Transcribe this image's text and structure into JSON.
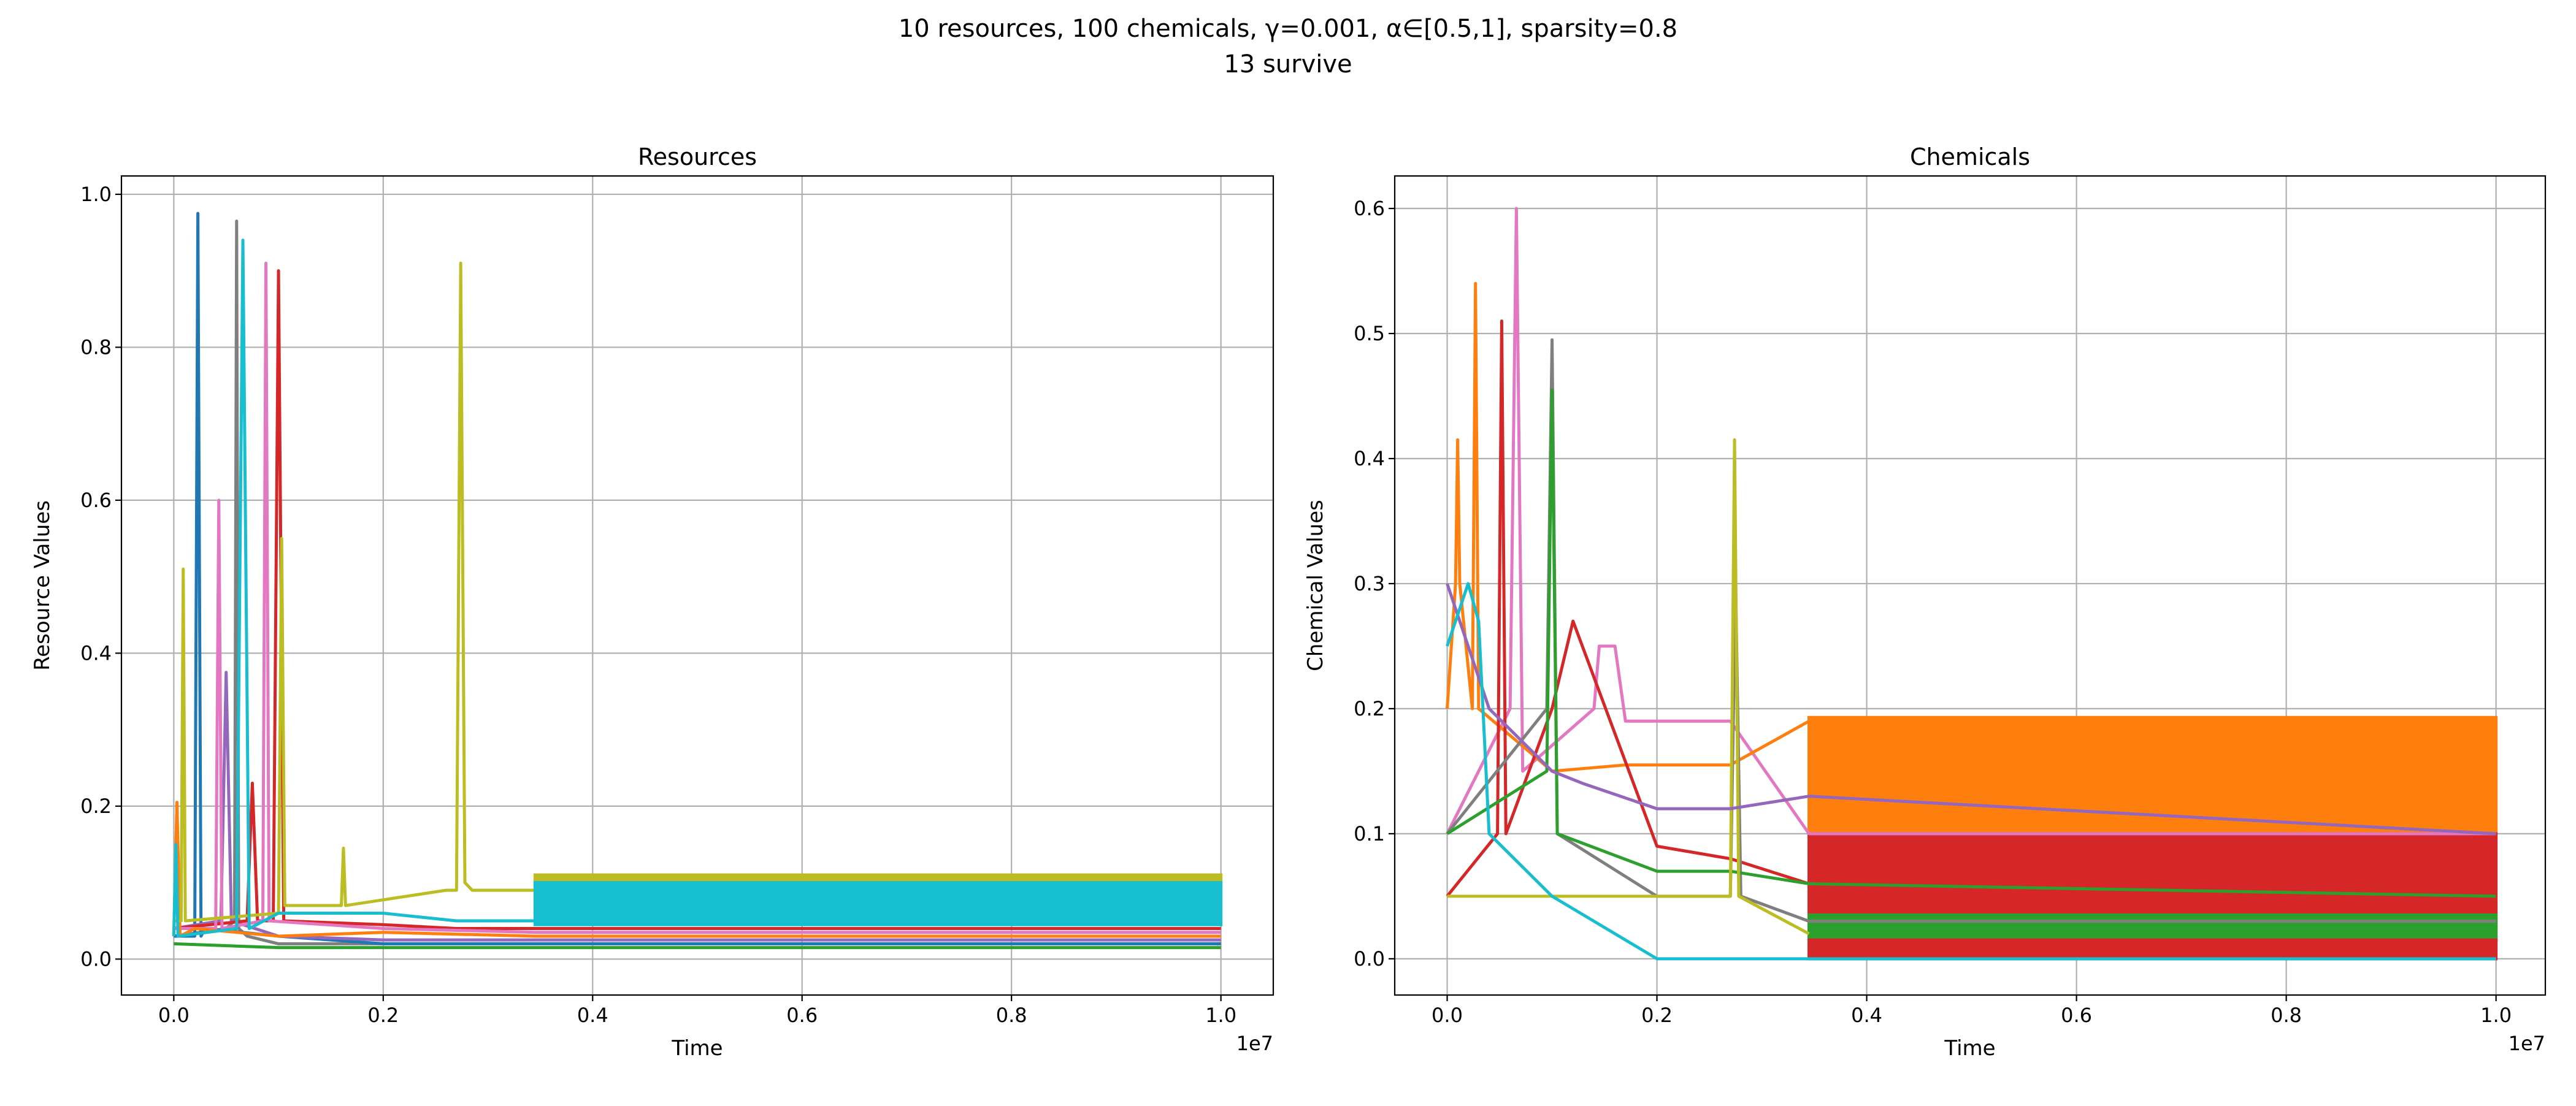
{
  "suptitle": [
    "10 resources, 100 chemicals, γ=0.001, α∈[0.5,1], sparsity=0.8",
    "13 survive"
  ],
  "chart_data": [
    {
      "type": "line",
      "title": "Resources",
      "x_label": "Time",
      "y_label": "Resource Values",
      "x_offset_label": "1e7",
      "grid": true,
      "xlim": [
        -0.05,
        1.05
      ],
      "ylim": [
        -0.047,
        1.024
      ],
      "xticks": [
        {
          "value": 0,
          "label": "0.0"
        },
        {
          "value": 0.2,
          "label": "0.2"
        },
        {
          "value": 0.4,
          "label": "0.4"
        },
        {
          "value": 0.6,
          "label": "0.6"
        },
        {
          "value": 0.8,
          "label": "0.8"
        },
        {
          "value": 1,
          "label": "1.0"
        }
      ],
      "yticks": [
        {
          "value": 0,
          "label": "0.0"
        },
        {
          "value": 0.2,
          "label": "0.2"
        },
        {
          "value": 0.4,
          "label": "0.4"
        },
        {
          "value": 0.6,
          "label": "0.6"
        },
        {
          "value": 0.8,
          "label": "0.8"
        },
        {
          "value": 1,
          "label": "1.0"
        }
      ],
      "series": [
        {
          "color": "#7f7f7f",
          "x": [
            0,
            0.05,
            0.058,
            0.06,
            0.062,
            0.07,
            0.1,
            0.2,
            0.345,
            1.0
          ],
          "values": [
            0.03,
            0.04,
            0.05,
            0.965,
            0.04,
            0.03,
            0.02,
            0.02,
            0.02,
            0.02
          ]
        },
        {
          "color": "#1f77b4",
          "x": [
            0,
            0.02,
            0.023,
            0.026,
            0.03,
            0.1,
            0.2,
            0.3,
            1.0
          ],
          "values": [
            0.03,
            0.03,
            0.975,
            0.03,
            0.04,
            0.03,
            0.02,
            0.02,
            0.02
          ]
        },
        {
          "color": "#9467bd",
          "x": [
            0,
            0.045,
            0.05,
            0.055,
            0.1,
            0.2,
            0.345,
            1.0
          ],
          "values": [
            0.04,
            0.05,
            0.375,
            0.05,
            0.03,
            0.025,
            0.025,
            0.025
          ]
        },
        {
          "color": "#d62728",
          "x": [
            0,
            0.07,
            0.075,
            0.08,
            0.095,
            0.1,
            0.105,
            0.2,
            0.27,
            0.345,
            1.0
          ],
          "values": [
            0.04,
            0.05,
            0.23,
            0.05,
            0.05,
            0.9,
            0.05,
            0.045,
            0.04,
            0.04,
            0.04
          ]
        },
        {
          "color": "#e377c2",
          "x": [
            0,
            0.04,
            0.043,
            0.046,
            0.085,
            0.088,
            0.091,
            0.2,
            0.345,
            1.0
          ],
          "values": [
            0.04,
            0.04,
            0.6,
            0.04,
            0.05,
            0.91,
            0.05,
            0.04,
            0.035,
            0.035
          ]
        },
        {
          "color": "#ff7f0e",
          "x": [
            0,
            0.003,
            0.006,
            0.02,
            0.1,
            0.2,
            0.345,
            1.0
          ],
          "values": [
            0.03,
            0.205,
            0.03,
            0.04,
            0.03,
            0.035,
            0.03,
            0.03
          ]
        },
        {
          "color": "#2ca02c",
          "x": [
            0,
            0.1,
            0.2,
            0.3,
            1.0
          ],
          "values": [
            0.02,
            0.015,
            0.015,
            0.015,
            0.015
          ]
        },
        {
          "color": "#bcbd22",
          "x": [
            0,
            0.007,
            0.009,
            0.011,
            0.1,
            0.103,
            0.106,
            0.16,
            0.162,
            0.164,
            0.26,
            0.27,
            0.274,
            0.278,
            0.285,
            0.345
          ],
          "values": [
            0.05,
            0.05,
            0.51,
            0.05,
            0.06,
            0.55,
            0.07,
            0.07,
            0.145,
            0.07,
            0.09,
            0.09,
            0.91,
            0.1,
            0.09,
            0.09
          ]
        },
        {
          "color": "#17becf",
          "x": [
            0,
            0.002,
            0.004,
            0.06,
            0.066,
            0.072,
            0.1,
            0.2,
            0.27,
            0.345
          ],
          "values": [
            0.03,
            0.15,
            0.03,
            0.04,
            0.94,
            0.04,
            0.06,
            0.06,
            0.05,
            0.05
          ]
        },
        {
          "color": "#bcbd22",
          "x": [
            0.345,
            1.0
          ],
          "values": [
            0.11,
            0.11
          ],
          "low": [
            0.1,
            0.1
          ]
        },
        {
          "color": "#17becf",
          "x": [
            0.345,
            1.0
          ],
          "values": [
            0.1,
            0.1
          ],
          "low": [
            0.045,
            0.045
          ]
        }
      ]
    },
    {
      "type": "line",
      "title": "Chemicals",
      "x_label": "Time",
      "y_label": "Chemical Values",
      "x_offset_label": "1e7",
      "grid": true,
      "xlim": [
        -0.05,
        1.047
      ],
      "ylim": [
        -0.029,
        0.626
      ],
      "xticks": [
        {
          "value": 0,
          "label": "0.0"
        },
        {
          "value": 0.2,
          "label": "0.2"
        },
        {
          "value": 0.4,
          "label": "0.4"
        },
        {
          "value": 0.6,
          "label": "0.6"
        },
        {
          "value": 0.8,
          "label": "0.8"
        },
        {
          "value": 1,
          "label": "1.0"
        }
      ],
      "yticks": [
        {
          "value": 0,
          "label": "0.0"
        },
        {
          "value": 0.1,
          "label": "0.1"
        },
        {
          "value": 0.2,
          "label": "0.2"
        },
        {
          "value": 0.3,
          "label": "0.3"
        },
        {
          "value": 0.4,
          "label": "0.4"
        },
        {
          "value": 0.5,
          "label": "0.5"
        },
        {
          "value": 0.6,
          "label": "0.6"
        }
      ],
      "series": [
        {
          "color": "#ff7f0e",
          "x": [
            0.345,
            1.0
          ],
          "values": [
            0.193,
            0.193
          ],
          "low": [
            0.1,
            0.1
          ]
        },
        {
          "color": "#d62728",
          "x": [
            0.345,
            1.0
          ],
          "values": [
            0.1,
            0.1
          ],
          "low": [
            0.015,
            0.015
          ]
        },
        {
          "color": "#2ca02c",
          "x": [
            0.345,
            1.0
          ],
          "values": [
            0.035,
            0.035
          ],
          "low": [
            0.015,
            0.015
          ]
        },
        {
          "color": "#d62728",
          "x": [
            0.345,
            1.0
          ],
          "values": [
            0.015,
            0.015
          ],
          "low": [
            0.0,
            0.0
          ]
        },
        {
          "color": "#e377c2",
          "x": [
            0,
            0.06,
            0.066,
            0.072,
            0.14,
            0.145,
            0.16,
            0.165,
            0.17,
            0.27,
            0.345,
            1.0
          ],
          "values": [
            0.1,
            0.2,
            0.6,
            0.15,
            0.2,
            0.25,
            0.25,
            0.22,
            0.19,
            0.19,
            0.1,
            0.1
          ]
        },
        {
          "color": "#ff7f0e",
          "x": [
            0,
            0.008,
            0.01,
            0.012,
            0.024,
            0.027,
            0.03,
            0.1,
            0.17,
            0.27,
            0.345
          ],
          "values": [
            0.2,
            0.3,
            0.415,
            0.3,
            0.2,
            0.54,
            0.2,
            0.15,
            0.155,
            0.155,
            0.19
          ]
        },
        {
          "color": "#d62728",
          "x": [
            0,
            0.048,
            0.052,
            0.056,
            0.1,
            0.12,
            0.2,
            0.27,
            0.345,
            1.0
          ],
          "values": [
            0.05,
            0.1,
            0.51,
            0.1,
            0.2,
            0.27,
            0.09,
            0.08,
            0.06,
            0.05
          ]
        },
        {
          "color": "#7f7f7f",
          "x": [
            0,
            0.095,
            0.1,
            0.105,
            0.2,
            0.27,
            0.275,
            0.28,
            0.345,
            1.0
          ],
          "values": [
            0.1,
            0.2,
            0.495,
            0.1,
            0.05,
            0.05,
            0.3,
            0.05,
            0.03,
            0.03
          ]
        },
        {
          "color": "#2ca02c",
          "x": [
            0,
            0.095,
            0.1,
            0.105,
            0.2,
            0.27,
            0.345,
            1.0
          ],
          "values": [
            0.1,
            0.15,
            0.455,
            0.1,
            0.07,
            0.07,
            0.06,
            0.05
          ]
        },
        {
          "color": "#bcbd22",
          "x": [
            0,
            0.1,
            0.2,
            0.27,
            0.274,
            0.278,
            0.345
          ],
          "values": [
            0.05,
            0.05,
            0.05,
            0.05,
            0.415,
            0.05,
            0.02
          ]
        },
        {
          "color": "#9467bd",
          "x": [
            0,
            0.04,
            0.1,
            0.13,
            0.2,
            0.27,
            0.345,
            1.0
          ],
          "values": [
            0.3,
            0.2,
            0.15,
            0.14,
            0.12,
            0.12,
            0.13,
            0.1
          ]
        },
        {
          "color": "#17becf",
          "x": [
            0,
            0.02,
            0.03,
            0.04,
            0.1,
            0.2,
            1.0
          ],
          "values": [
            0.25,
            0.3,
            0.27,
            0.1,
            0.05,
            0.0,
            0.0
          ]
        }
      ]
    }
  ]
}
